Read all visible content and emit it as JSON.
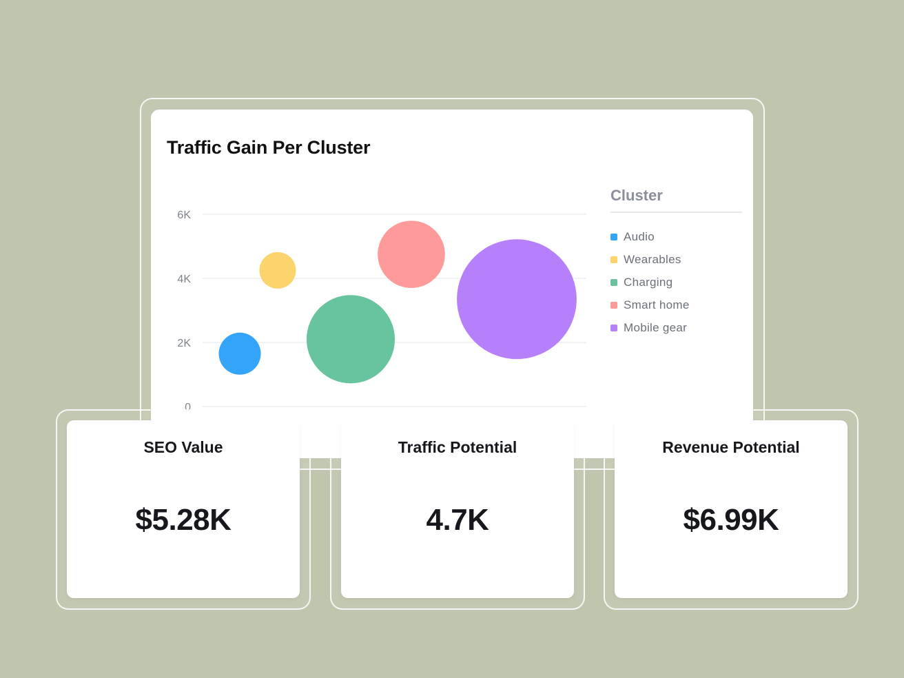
{
  "chart_data": {
    "type": "scatter",
    "title": "Traffic Gain Per Cluster",
    "ylim": [
      0,
      6000
    ],
    "y_ticks": [
      {
        "value": 0,
        "label": "0"
      },
      {
        "value": 2000,
        "label": "2K"
      },
      {
        "value": 4000,
        "label": "4K"
      },
      {
        "value": 6000,
        "label": "6K"
      }
    ],
    "grid": true,
    "legend_title": "Cluster",
    "legend_placement": "right",
    "series": [
      {
        "name": "Audio",
        "color": "#34a4f8",
        "x": 1,
        "y": 1650,
        "size": 1.0
      },
      {
        "name": "Wearables",
        "color": "#fbd46d",
        "x": 2,
        "y": 4250,
        "size": 0.87
      },
      {
        "name": "Charging",
        "color": "#67c49f",
        "x": 3,
        "y": 2100,
        "size": 2.1
      },
      {
        "name": "Smart home",
        "color": "#ff9a9a",
        "x": 4,
        "y": 4750,
        "size": 1.6
      },
      {
        "name": "Mobile gear",
        "color": "#b780fb",
        "x": 5,
        "y": 3350,
        "size": 2.85
      }
    ]
  },
  "cards": [
    {
      "label": "SEO Value",
      "value": "$5.28K"
    },
    {
      "label": "Traffic Potential",
      "value": "4.7K"
    },
    {
      "label": "Revenue Potential",
      "value": "$6.99K"
    }
  ]
}
